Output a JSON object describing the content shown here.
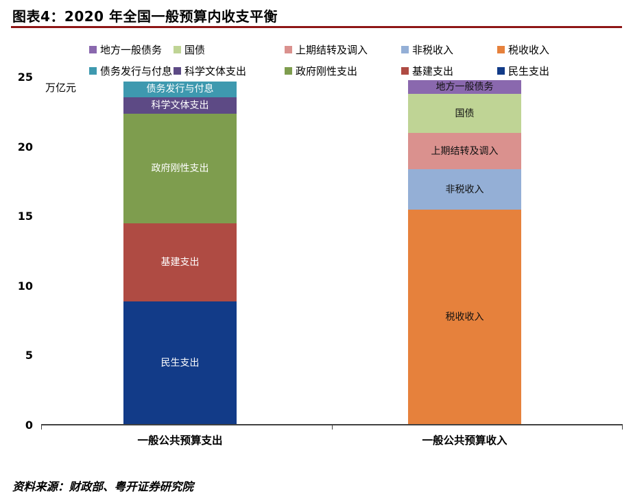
{
  "footer": {
    "source": "资料来源：财政部、粤开证券研究院"
  },
  "colors": {
    "title_rule": "#8E1515",
    "axis": "#404040"
  },
  "chart_data": {
    "type": "bar",
    "stacked": true,
    "title": "图表4：2020 年全国一般预算内收支平衡",
    "unit_label": "万亿元",
    "xlabel": "",
    "ylabel": "万亿元",
    "ylim": [
      0,
      25
    ],
    "yticks": [
      0,
      5,
      10,
      15,
      20,
      25
    ],
    "grid": false,
    "legend_position": "top",
    "categories": [
      "一般公共预算支出",
      "一般公共预算收入"
    ],
    "bars": [
      {
        "category": "一般公共预算支出",
        "total": 24.6,
        "segments": [
          {
            "label": "民生支出",
            "value": 8.8,
            "color": "#123B88",
            "text_color": "#FFFFFF"
          },
          {
            "label": "基建支出",
            "value": 5.6,
            "color": "#AF4B43",
            "text_color": "#FFFFFF"
          },
          {
            "label": "政府刚性支出",
            "value": 7.9,
            "color": "#7E9D4E",
            "text_color": "#FFFFFF"
          },
          {
            "label": "科学文体支出",
            "value": 1.2,
            "color": "#5D4A85",
            "text_color": "#FFFFFF"
          },
          {
            "label": "债务发行与付息",
            "value": 1.1,
            "color": "#3E99AF",
            "text_color": "#FFFFFF"
          }
        ]
      },
      {
        "category": "一般公共预算收入",
        "total": 24.7,
        "segments": [
          {
            "label": "税收收入",
            "value": 15.4,
            "color": "#E6813C",
            "text_color": "#111111"
          },
          {
            "label": "非税收入",
            "value": 2.9,
            "color": "#94AFD6",
            "text_color": "#111111"
          },
          {
            "label": "上期结转及调入",
            "value": 2.6,
            "color": "#DA918E",
            "text_color": "#111111"
          },
          {
            "label": "国债",
            "value": 2.8,
            "color": "#BFD495",
            "text_color": "#111111"
          },
          {
            "label": "地方一般债务",
            "value": 1.0,
            "color": "#8A68AE",
            "text_color": "#111111"
          }
        ]
      }
    ],
    "legend": {
      "rows": [
        [
          {
            "label": "地方一般债务",
            "color": "#8A68AE"
          },
          {
            "label": "国债",
            "color": "#BFD495"
          },
          {
            "label": "上期结转及调入",
            "color": "#DA918E"
          },
          {
            "label": "非税收入",
            "color": "#94AFD6"
          },
          {
            "label": "税收收入",
            "color": "#E6813C"
          }
        ],
        [
          {
            "label": "债务发行与付息",
            "color": "#3E99AF"
          },
          {
            "label": "科学文体支出",
            "color": "#5D4A85"
          },
          {
            "label": "政府刚性支出",
            "color": "#7E9D4E"
          },
          {
            "label": "基建支出",
            "color": "#AF4B43"
          },
          {
            "label": "民生支出",
            "color": "#123B88"
          }
        ]
      ]
    }
  }
}
